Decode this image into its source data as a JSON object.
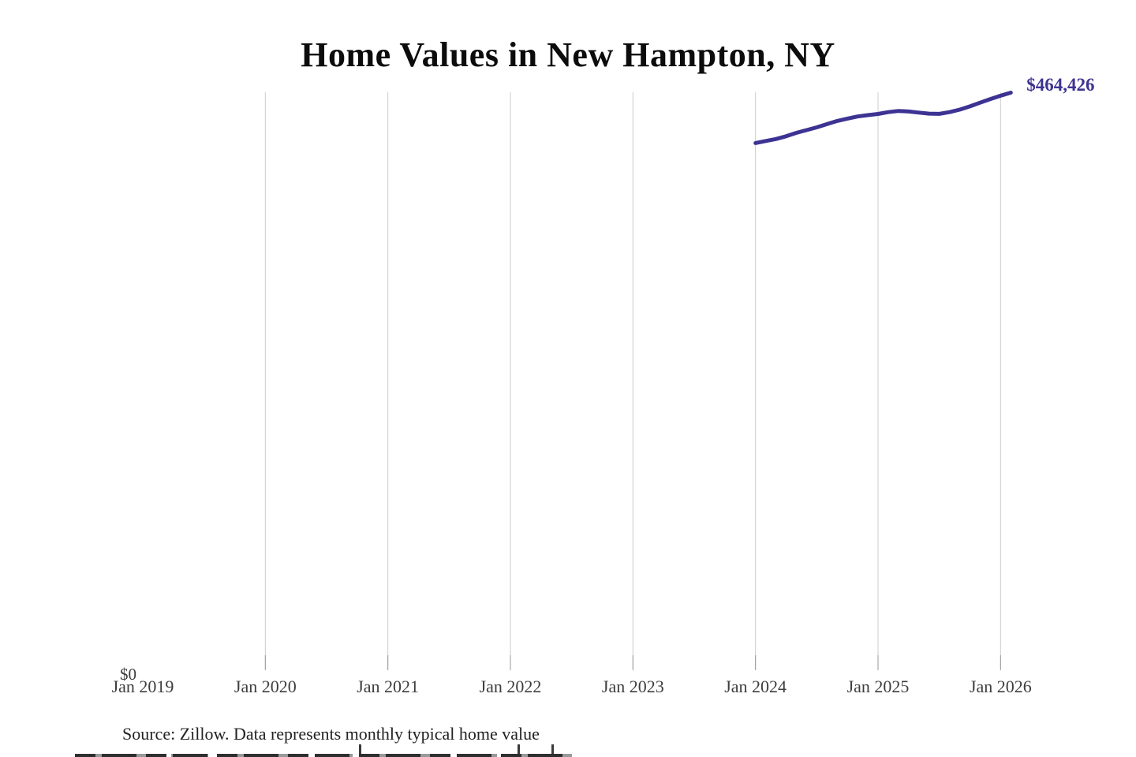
{
  "page": {
    "source_note": "Source: Zillow. Data represents monthly typical home value"
  },
  "chart_data": {
    "type": "line",
    "title": "Home Values in New Hampton, NY",
    "x_tick_labels": [
      "Jan 2019",
      "Jan 2020",
      "Jan 2021",
      "Jan 2022",
      "Jan 2023",
      "Jan 2024",
      "Jan 2025",
      "Jan 2026"
    ],
    "gridlines_at": [
      "Jan 2020",
      "Jan 2021",
      "Jan 2022",
      "Jan 2023",
      "Jan 2024",
      "Jan 2025",
      "Jan 2026"
    ],
    "y_axis": {
      "zero_label": "$0",
      "min": 0,
      "max": 465000
    },
    "end_label": "$464,426",
    "line_color": "#3d3393",
    "grid_color": "#cccccc",
    "tick_color": "#999999",
    "series": [
      {
        "name": "typical-home-value",
        "points": [
          {
            "date": "2024-01",
            "value": 424200
          },
          {
            "date": "2024-02",
            "value": 425800
          },
          {
            "date": "2024-03",
            "value": 427400
          },
          {
            "date": "2024-04",
            "value": 429600
          },
          {
            "date": "2024-05",
            "value": 432300
          },
          {
            "date": "2024-06",
            "value": 434500
          },
          {
            "date": "2024-07",
            "value": 436700
          },
          {
            "date": "2024-08",
            "value": 439300
          },
          {
            "date": "2024-09",
            "value": 441800
          },
          {
            "date": "2024-10",
            "value": 443700
          },
          {
            "date": "2024-11",
            "value": 445400
          },
          {
            "date": "2024-12",
            "value": 446500
          },
          {
            "date": "2025-01",
            "value": 447400
          },
          {
            "date": "2025-02",
            "value": 448900
          },
          {
            "date": "2025-03",
            "value": 449800
          },
          {
            "date": "2025-04",
            "value": 449400
          },
          {
            "date": "2025-05",
            "value": 448500
          },
          {
            "date": "2025-06",
            "value": 447700
          },
          {
            "date": "2025-07",
            "value": 447500
          },
          {
            "date": "2025-08",
            "value": 448900
          },
          {
            "date": "2025-09",
            "value": 450900
          },
          {
            "date": "2025-10",
            "value": 453500
          },
          {
            "date": "2025-11",
            "value": 456400
          },
          {
            "date": "2025-12",
            "value": 459300
          },
          {
            "date": "2026-01",
            "value": 462000
          },
          {
            "date": "2026-02",
            "value": 464426
          }
        ]
      }
    ]
  }
}
